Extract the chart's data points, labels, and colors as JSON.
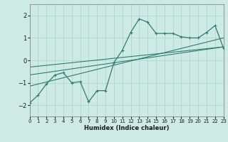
{
  "xlabel": "Humidex (Indice chaleur)",
  "ylabel": "",
  "xlim": [
    0,
    23
  ],
  "ylim": [
    -2.5,
    2.5
  ],
  "xticks": [
    0,
    1,
    2,
    3,
    4,
    5,
    6,
    7,
    8,
    9,
    10,
    11,
    12,
    13,
    14,
    15,
    16,
    17,
    18,
    19,
    20,
    21,
    22,
    23
  ],
  "yticks": [
    -2,
    -1,
    0,
    1,
    2
  ],
  "line_color": "#2e7d6e",
  "bg_color": "#ceeae4",
  "grid_color": "#aad4cc",
  "main_x": [
    0,
    1,
    2,
    3,
    4,
    5,
    6,
    7,
    8,
    9,
    10,
    11,
    12,
    13,
    14,
    15,
    16,
    17,
    18,
    19,
    20,
    21,
    22,
    23
  ],
  "main_y": [
    -1.9,
    -1.55,
    -1.05,
    -0.65,
    -0.55,
    -1.0,
    -0.95,
    -1.85,
    -1.35,
    -1.35,
    -0.1,
    0.45,
    1.25,
    1.85,
    1.7,
    1.2,
    1.2,
    1.2,
    1.05,
    1.0,
    1.0,
    1.25,
    1.55,
    0.55
  ],
  "trend1_x": [
    0,
    23
  ],
  "trend1_y": [
    -1.15,
    1.0
  ],
  "trend2_x": [
    0,
    23
  ],
  "trend2_y": [
    -0.65,
    0.6
  ],
  "trend3_x": [
    0,
    23
  ],
  "trend3_y": [
    -0.3,
    0.6
  ]
}
